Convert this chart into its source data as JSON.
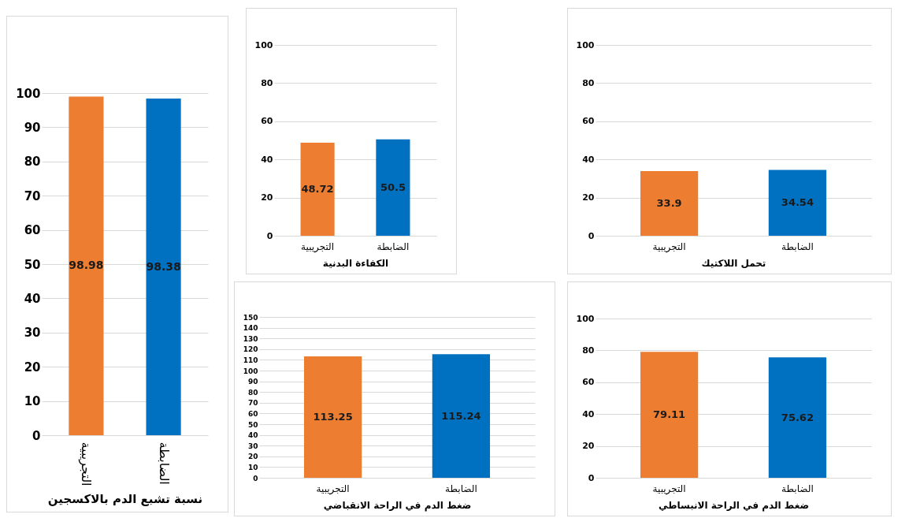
{
  "chart_data": [
    {
      "type": "bar",
      "xlabel": "نسبة تشبع الدم بالاكسجين",
      "categories": [
        "التجريبية",
        "الضابطة"
      ],
      "values": [
        98.98,
        98.38
      ],
      "colors": [
        "#ed7d31",
        "#0070c0"
      ],
      "ylim": [
        0,
        100
      ],
      "yticks": [
        0,
        10,
        20,
        30,
        40,
        50,
        60,
        70,
        80,
        90,
        100
      ],
      "grid": "y",
      "data_labels": true,
      "legend": false
    },
    {
      "type": "bar",
      "xlabel": "الكفاءة البدنية",
      "categories": [
        "التجريبية",
        "الضابطة"
      ],
      "values": [
        48.72,
        50.5
      ],
      "colors": [
        "#ed7d31",
        "#0070c0"
      ],
      "ylim": [
        0,
        100
      ],
      "yticks": [
        0,
        20,
        40,
        60,
        80,
        100
      ],
      "grid": "y",
      "data_labels": true,
      "legend": false
    },
    {
      "type": "bar",
      "xlabel": "تحمل اللاكتيك",
      "categories": [
        "التجريبية",
        "الضابطة"
      ],
      "values": [
        33.9,
        34.54
      ],
      "colors": [
        "#ed7d31",
        "#0070c0"
      ],
      "ylim": [
        0,
        100
      ],
      "yticks": [
        0,
        20,
        40,
        60,
        80,
        100
      ],
      "grid": "y",
      "data_labels": true,
      "legend": false
    },
    {
      "type": "bar",
      "xlabel": "ضغط الدم في الراحة الانقباضي",
      "categories": [
        "التجريبية",
        "الضابطة"
      ],
      "values": [
        113.25,
        115.24
      ],
      "colors": [
        "#ed7d31",
        "#0070c0"
      ],
      "ylim": [
        0,
        150
      ],
      "yticks": [
        0,
        10,
        20,
        30,
        40,
        50,
        60,
        70,
        80,
        90,
        100,
        110,
        120,
        130,
        140,
        150
      ],
      "grid": "y",
      "data_labels": true,
      "legend": false
    },
    {
      "type": "bar",
      "xlabel": "ضغط الدم في الراحة الانبساطي",
      "categories": [
        "التجريبية",
        "الضابطة"
      ],
      "values": [
        79.11,
        75.62
      ],
      "colors": [
        "#ed7d31",
        "#0070c0"
      ],
      "ylim": [
        0,
        100
      ],
      "yticks": [
        0,
        20,
        40,
        60,
        80,
        100
      ],
      "grid": "y",
      "data_labels": true,
      "legend": false
    }
  ]
}
